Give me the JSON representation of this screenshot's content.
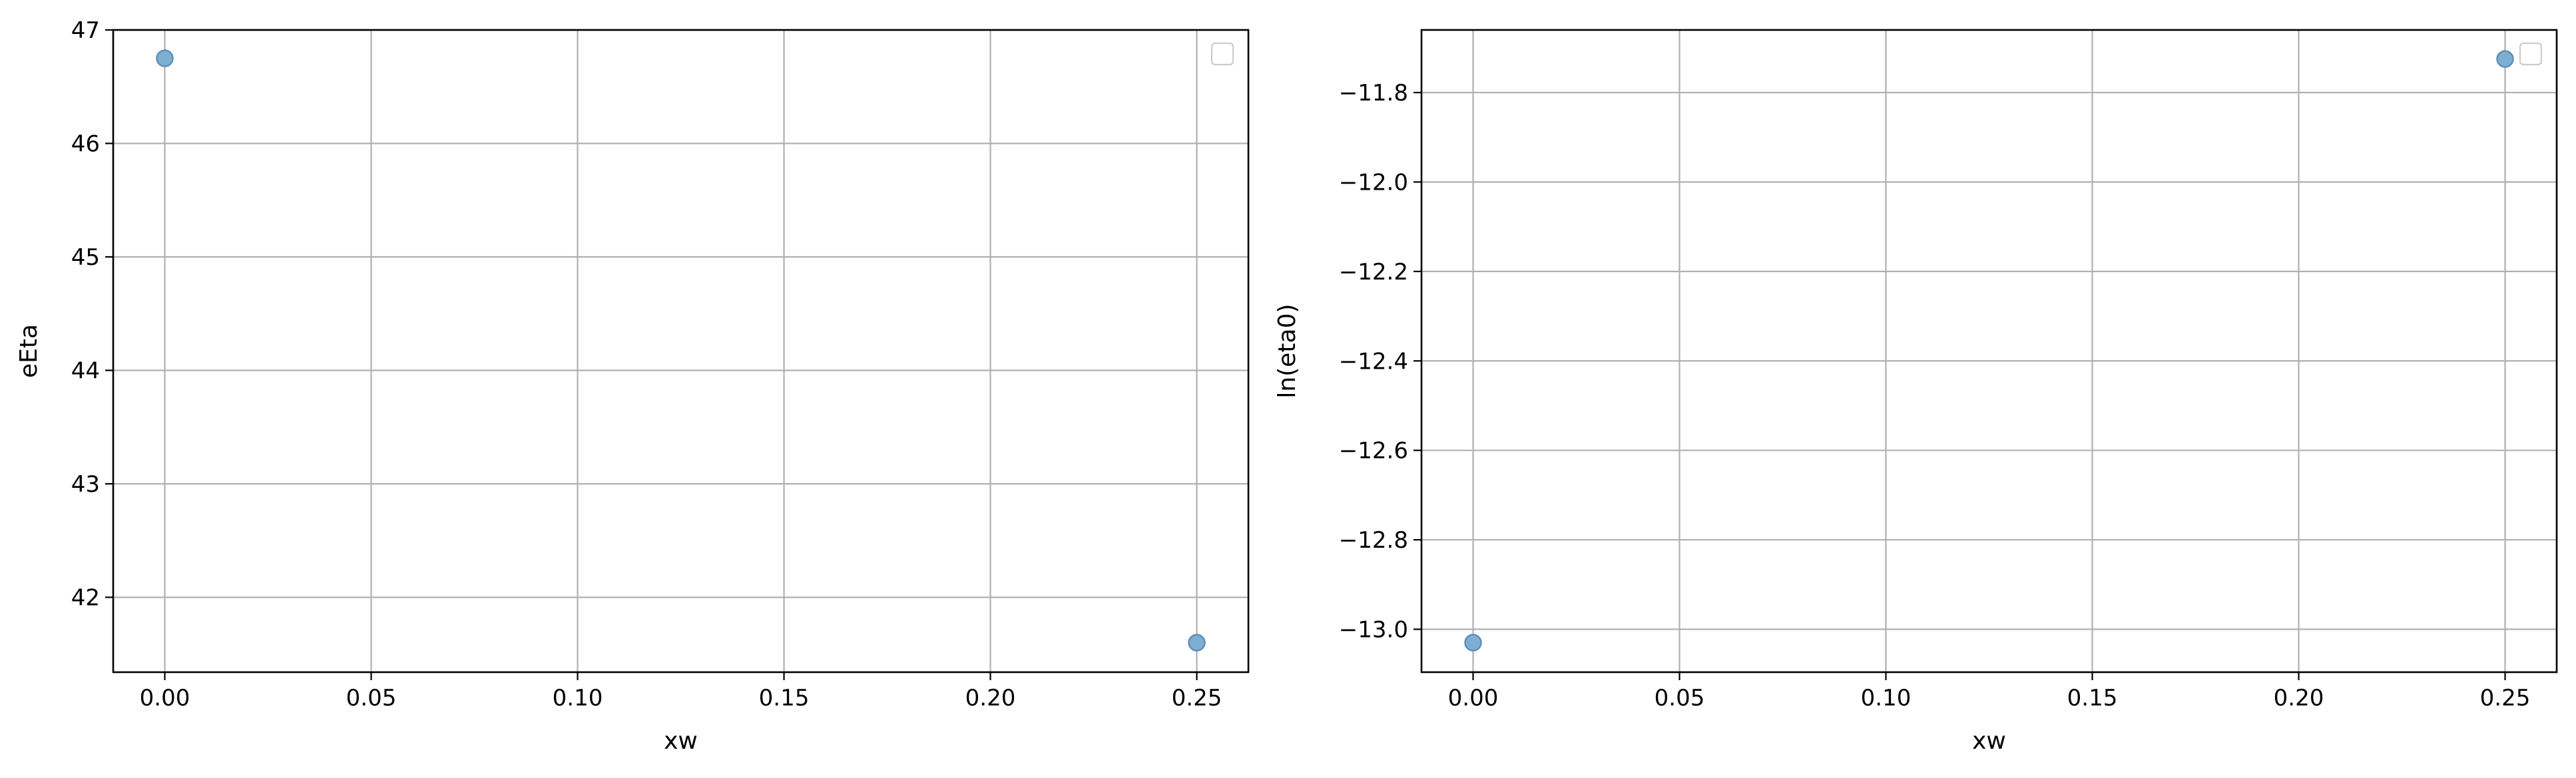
{
  "chart_data": [
    {
      "type": "scatter",
      "title": "",
      "xlabel": "xw",
      "ylabel": "eEta",
      "xlim": [
        -0.0125,
        0.2625
      ],
      "ylim": [
        41.34,
        47.0
      ],
      "xticks": [
        0.0,
        0.05,
        0.1,
        0.15,
        0.2,
        0.25
      ],
      "xtick_labels": [
        "0.00",
        "0.05",
        "0.10",
        "0.15",
        "0.20",
        "0.25"
      ],
      "yticks": [
        42,
        43,
        44,
        45,
        46,
        47
      ],
      "ytick_labels": [
        "42",
        "43",
        "44",
        "45",
        "46",
        "47"
      ],
      "grid": true,
      "legend": "top-right",
      "color": "#7faed3",
      "edge_color": "#5f8fb8",
      "points": [
        {
          "x": 0.0,
          "y": 46.75
        },
        {
          "x": 0.25,
          "y": 41.6
        }
      ]
    },
    {
      "type": "scatter",
      "title": "",
      "xlabel": "xw",
      "ylabel": "ln(eta0)",
      "xlim": [
        -0.0125,
        0.2625
      ],
      "ylim": [
        -13.096,
        -11.66
      ],
      "xticks": [
        0.0,
        0.05,
        0.1,
        0.15,
        0.2,
        0.25
      ],
      "xtick_labels": [
        "0.00",
        "0.05",
        "0.10",
        "0.15",
        "0.20",
        "0.25"
      ],
      "yticks": [
        -13.0,
        -12.8,
        -12.6,
        -12.4,
        -12.2,
        -12.0,
        -11.8
      ],
      "ytick_labels": [
        "−13.0",
        "−12.8",
        "−12.6",
        "−12.4",
        "−12.2",
        "−12.0",
        "−11.8"
      ],
      "grid": true,
      "legend": "top-right",
      "color": "#7faed3",
      "edge_color": "#5f8fb8",
      "points": [
        {
          "x": 0.0,
          "y": -13.03
        },
        {
          "x": 0.25,
          "y": -11.725
        }
      ]
    }
  ]
}
